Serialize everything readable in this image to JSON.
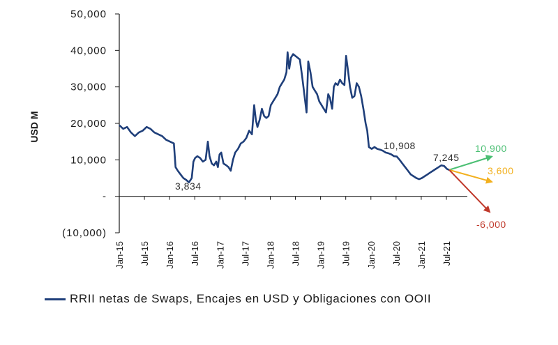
{
  "chart_data": {
    "type": "line",
    "ylabel": "USD M",
    "ylim": [
      -10000,
      50000
    ],
    "y_ticks": [
      {
        "value": 50000,
        "label": "50,000"
      },
      {
        "value": 40000,
        "label": "40,000"
      },
      {
        "value": 30000,
        "label": "30,000"
      },
      {
        "value": 20000,
        "label": "20,000"
      },
      {
        "value": 10000,
        "label": "10,000"
      },
      {
        "value": 0,
        "label": "-"
      },
      {
        "value": -10000,
        "label": "(10,000)"
      }
    ],
    "x_ticks": [
      "Jan-15",
      "Jul-15",
      "Jan-16",
      "Jul-16",
      "Jan-17",
      "Jul-17",
      "Jan-18",
      "Jul-18",
      "Jan-19",
      "Jul-19",
      "Jan-20",
      "Jul-20",
      "Jan-21",
      "Jul-21"
    ],
    "series": [
      {
        "name": "RRII netas de Swaps, Encajes en USD y Obligaciones con OOII",
        "color": "#1f3f7a",
        "points": [
          [
            0,
            19500
          ],
          [
            0.7,
            18500
          ],
          [
            1.4,
            19000
          ],
          [
            2.1,
            17500
          ],
          [
            2.8,
            16500
          ],
          [
            3.5,
            17500
          ],
          [
            4.2,
            18000
          ],
          [
            4.9,
            19000
          ],
          [
            5.6,
            18500
          ],
          [
            6.3,
            17500
          ],
          [
            7.0,
            17000
          ],
          [
            7.7,
            16500
          ],
          [
            8.4,
            15500
          ],
          [
            9.1,
            15000
          ],
          [
            9.8,
            14500
          ],
          [
            10.1,
            8000
          ],
          [
            10.5,
            7000
          ],
          [
            11.0,
            6000
          ],
          [
            11.5,
            5000
          ],
          [
            12.0,
            4500
          ],
          [
            12.5,
            3834
          ],
          [
            13.0,
            5000
          ],
          [
            13.3,
            9500
          ],
          [
            13.6,
            10500
          ],
          [
            14.0,
            11000
          ],
          [
            14.5,
            10500
          ],
          [
            15.0,
            9500
          ],
          [
            15.5,
            10000
          ],
          [
            15.9,
            15000
          ],
          [
            16.2,
            11000
          ],
          [
            16.6,
            9000
          ],
          [
            17.0,
            8500
          ],
          [
            17.4,
            9500
          ],
          [
            17.7,
            8000
          ],
          [
            18.0,
            11500
          ],
          [
            18.3,
            12000
          ],
          [
            18.7,
            9000
          ],
          [
            19.2,
            8500
          ],
          [
            19.6,
            8000
          ],
          [
            20.0,
            7000
          ],
          [
            20.4,
            10000
          ],
          [
            20.8,
            12000
          ],
          [
            21.3,
            13000
          ],
          [
            21.8,
            14500
          ],
          [
            22.3,
            15000
          ],
          [
            22.8,
            16000
          ],
          [
            23.3,
            18000
          ],
          [
            23.8,
            17000
          ],
          [
            24.2,
            25000
          ],
          [
            24.5,
            21000
          ],
          [
            24.8,
            19000
          ],
          [
            25.2,
            21000
          ],
          [
            25.6,
            24000
          ],
          [
            26.0,
            22000
          ],
          [
            26.4,
            21500
          ],
          [
            26.8,
            22000
          ],
          [
            27.2,
            25000
          ],
          [
            27.6,
            26000
          ],
          [
            28.0,
            27000
          ],
          [
            28.4,
            28000
          ],
          [
            28.8,
            30000
          ],
          [
            29.2,
            31000
          ],
          [
            29.6,
            32000
          ],
          [
            30.0,
            34000
          ],
          [
            30.2,
            39500
          ],
          [
            30.5,
            35000
          ],
          [
            30.8,
            38000
          ],
          [
            31.2,
            39000
          ],
          [
            31.6,
            38500
          ],
          [
            32.0,
            38000
          ],
          [
            32.4,
            37500
          ],
          [
            32.8,
            33000
          ],
          [
            33.2,
            28000
          ],
          [
            33.6,
            23000
          ],
          [
            33.9,
            37000
          ],
          [
            34.3,
            34000
          ],
          [
            34.7,
            30000
          ],
          [
            35.1,
            29000
          ],
          [
            35.5,
            28000
          ],
          [
            35.9,
            26000
          ],
          [
            36.3,
            25000
          ],
          [
            36.7,
            24000
          ],
          [
            37.1,
            23000
          ],
          [
            37.5,
            28000
          ],
          [
            37.8,
            27000
          ],
          [
            38.2,
            24000
          ],
          [
            38.5,
            30000
          ],
          [
            38.8,
            31000
          ],
          [
            39.2,
            30500
          ],
          [
            39.6,
            32000
          ],
          [
            40.0,
            31000
          ],
          [
            40.4,
            30500
          ],
          [
            40.7,
            38500
          ],
          [
            41.0,
            35000
          ],
          [
            41.4,
            30000
          ],
          [
            41.8,
            27000
          ],
          [
            42.2,
            27500
          ],
          [
            42.6,
            31000
          ],
          [
            43.0,
            30000
          ],
          [
            43.4,
            27500
          ],
          [
            43.8,
            24000
          ],
          [
            44.2,
            20000
          ],
          [
            44.5,
            18000
          ],
          [
            44.8,
            13500
          ],
          [
            45.3,
            13000
          ],
          [
            45.8,
            13500
          ],
          [
            46.3,
            13000
          ],
          [
            46.8,
            12800
          ],
          [
            47.3,
            12500
          ],
          [
            47.8,
            12000
          ],
          [
            48.3,
            11800
          ],
          [
            48.8,
            11500
          ],
          [
            49.3,
            11000
          ],
          [
            49.8,
            10908
          ],
          [
            50.3,
            10000
          ],
          [
            50.8,
            9000
          ],
          [
            51.3,
            8000
          ],
          [
            51.8,
            7000
          ],
          [
            52.3,
            6000
          ],
          [
            52.8,
            5500
          ],
          [
            53.3,
            5000
          ],
          [
            53.8,
            4700
          ],
          [
            54.3,
            5000
          ],
          [
            54.8,
            5500
          ],
          [
            55.3,
            6000
          ],
          [
            55.8,
            6500
          ],
          [
            56.3,
            7000
          ],
          [
            56.8,
            7500
          ],
          [
            57.3,
            8000
          ],
          [
            57.8,
            8500
          ],
          [
            58.3,
            8300
          ],
          [
            58.8,
            7500
          ],
          [
            59.2,
            7245
          ]
        ]
      }
    ],
    "annotations": [
      {
        "label": "3,834",
        "value": 3834
      },
      {
        "label": "10,908",
        "value": 10908
      },
      {
        "label": "7,245",
        "value": 7245
      }
    ],
    "projections": [
      {
        "label": "10,900",
        "value": 10900,
        "color": "#4bbf73"
      },
      {
        "label": "3,600",
        "value": 3600,
        "color": "#f2b01e"
      },
      {
        "label": "-6,000",
        "value": -6000,
        "color": "#c0392b"
      }
    ]
  }
}
